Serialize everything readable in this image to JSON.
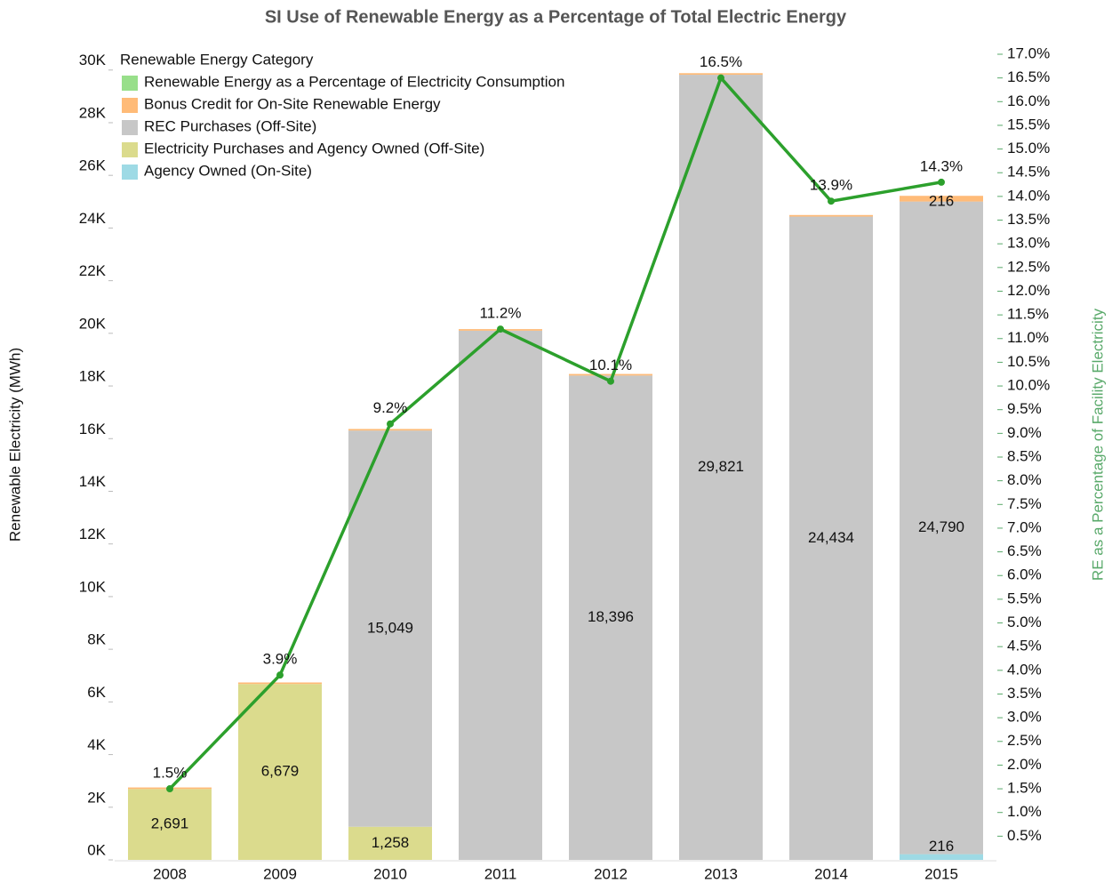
{
  "chart_data": {
    "type": "bar",
    "stacked": true,
    "title": "SI Use of Renewable Energy as a Percentage of Total Electric Energy",
    "y_label": "Renewable Electricity (MWh)",
    "y2_label": "RE as a Percentage of Facility Electricity",
    "legend_title": "Renewable Energy Category",
    "legend": "top-left",
    "categories": [
      "2008",
      "2009",
      "2010",
      "2011",
      "2012",
      "2013",
      "2014",
      "2015"
    ],
    "series": [
      {
        "name": "Renewable Energy as a Percentage of Electricity Consumption",
        "type": "line",
        "axis": "y2",
        "color": "#2ca02c",
        "legend_color": "#98df8a",
        "values": [
          1.5,
          3.9,
          9.2,
          11.2,
          10.1,
          16.5,
          13.9,
          14.3
        ],
        "value_labels": [
          "1.5%",
          "3.9%",
          "9.2%",
          "11.2%",
          "10.1%",
          "16.5%",
          "13.9%",
          "14.3%"
        ]
      },
      {
        "name": "Bonus Credit for On-Site Renewable Energy",
        "color": "#ffbb78",
        "values": [
          60,
          60,
          60,
          60,
          60,
          60,
          60,
          216
        ],
        "value_labels": [
          null,
          null,
          null,
          null,
          null,
          null,
          null,
          "216"
        ]
      },
      {
        "name": "REC Purchases (Off-Site)",
        "color": "#c7c7c7",
        "values": [
          0,
          0,
          15049,
          20100,
          18396,
          29821,
          24434,
          24790
        ],
        "value_labels": [
          null,
          null,
          "15,049",
          null,
          "18,396",
          "29,821",
          "24,434",
          "24,790"
        ]
      },
      {
        "name": "Electricity Purchases and Agency Owned (Off-Site)",
        "color": "#dbdb8d",
        "values": [
          2691,
          6679,
          1258,
          0,
          0,
          0,
          0,
          0
        ],
        "value_labels": [
          "2,691",
          "6,679",
          "1,258",
          null,
          null,
          null,
          null,
          null
        ]
      },
      {
        "name": "Agency Owned (On-Site)",
        "color": "#9edae5",
        "values": [
          0,
          0,
          0,
          0,
          0,
          0,
          0,
          216
        ],
        "value_labels": [
          null,
          null,
          null,
          null,
          null,
          null,
          null,
          "216"
        ]
      }
    ],
    "stack_order": [
      4,
      3,
      2,
      1
    ],
    "ylim": [
      0,
      30600
    ],
    "yticks": [
      {
        "value": 0,
        "label": "0K"
      },
      {
        "value": 2000,
        "label": "2K"
      },
      {
        "value": 4000,
        "label": "4K"
      },
      {
        "value": 6000,
        "label": "6K"
      },
      {
        "value": 8000,
        "label": "8K"
      },
      {
        "value": 10000,
        "label": "10K"
      },
      {
        "value": 12000,
        "label": "12K"
      },
      {
        "value": 14000,
        "label": "14K"
      },
      {
        "value": 16000,
        "label": "16K"
      },
      {
        "value": 18000,
        "label": "18K"
      },
      {
        "value": 20000,
        "label": "20K"
      },
      {
        "value": 22000,
        "label": "22K"
      },
      {
        "value": 24000,
        "label": "24K"
      },
      {
        "value": 26000,
        "label": "26K"
      },
      {
        "value": 28000,
        "label": "28K"
      },
      {
        "value": 30000,
        "label": "30K"
      }
    ],
    "y2lim": [
      0,
      17
    ],
    "y2ticks": [
      {
        "value": 0.5,
        "label": "0.5%"
      },
      {
        "value": 1.0,
        "label": "1.0%"
      },
      {
        "value": 1.5,
        "label": "1.5%"
      },
      {
        "value": 2.0,
        "label": "2.0%"
      },
      {
        "value": 2.5,
        "label": "2.5%"
      },
      {
        "value": 3.0,
        "label": "3.0%"
      },
      {
        "value": 3.5,
        "label": "3.5%"
      },
      {
        "value": 4.0,
        "label": "4.0%"
      },
      {
        "value": 4.5,
        "label": "4.5%"
      },
      {
        "value": 5.0,
        "label": "5.0%"
      },
      {
        "value": 5.5,
        "label": "5.5%"
      },
      {
        "value": 6.0,
        "label": "6.0%"
      },
      {
        "value": 6.5,
        "label": "6.5%"
      },
      {
        "value": 7.0,
        "label": "7.0%"
      },
      {
        "value": 7.5,
        "label": "7.5%"
      },
      {
        "value": 8.0,
        "label": "8.0%"
      },
      {
        "value": 8.5,
        "label": "8.5%"
      },
      {
        "value": 9.0,
        "label": "9.0%"
      },
      {
        "value": 9.5,
        "label": "9.5%"
      },
      {
        "value": 10.0,
        "label": "10.0%"
      },
      {
        "value": 10.5,
        "label": "10.5%"
      },
      {
        "value": 11.0,
        "label": "11.0%"
      },
      {
        "value": 11.5,
        "label": "11.5%"
      },
      {
        "value": 12.0,
        "label": "12.0%"
      },
      {
        "value": 12.5,
        "label": "12.5%"
      },
      {
        "value": 13.0,
        "label": "13.0%"
      },
      {
        "value": 13.5,
        "label": "13.5%"
      },
      {
        "value": 14.0,
        "label": "14.0%"
      },
      {
        "value": 14.5,
        "label": "14.5%"
      },
      {
        "value": 15.0,
        "label": "15.0%"
      },
      {
        "value": 15.5,
        "label": "15.5%"
      },
      {
        "value": 16.0,
        "label": "16.0%"
      },
      {
        "value": 16.5,
        "label": "16.5%"
      },
      {
        "value": 17.0,
        "label": "17.0%"
      }
    ],
    "y2_color": "#59a96a",
    "grid": false
  }
}
